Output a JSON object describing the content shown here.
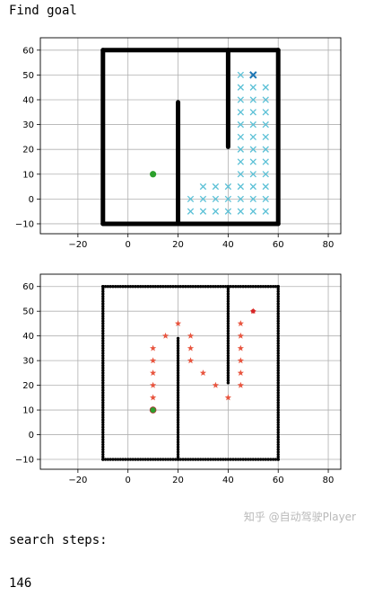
{
  "header": {
    "title": "Find goal"
  },
  "footer": {
    "label": "search steps:",
    "value": "146"
  },
  "watermark": "知乎 @自动驾驶Player",
  "chart_data": [
    {
      "type": "scatter",
      "xlim": [
        -35,
        85
      ],
      "ylim": [
        -14,
        65
      ],
      "xticks": [
        -20,
        0,
        20,
        40,
        60,
        80
      ],
      "yticks": [
        -10,
        0,
        10,
        20,
        30,
        40,
        50,
        60
      ],
      "grid": true,
      "obstacles_color": "#000000",
      "obstacles": [
        {
          "from": [
            -10,
            -10
          ],
          "to": [
            60,
            -10
          ]
        },
        {
          "from": [
            -10,
            60
          ],
          "to": [
            60,
            60
          ]
        },
        {
          "from": [
            -10,
            -10
          ],
          "to": [
            -10,
            60
          ]
        },
        {
          "from": [
            60,
            -10
          ],
          "to": [
            60,
            60
          ]
        },
        {
          "from": [
            20,
            -10
          ],
          "to": [
            20,
            39
          ]
        },
        {
          "from": [
            40,
            21
          ],
          "to": [
            40,
            60
          ]
        }
      ],
      "start": {
        "x": 10,
        "y": 10,
        "color": "#2ca02c"
      },
      "goal": {
        "x": 50,
        "y": 50,
        "color": "#1f77b4"
      },
      "explored_color": "#5bc0d6",
      "explored": [
        [
          45,
          50
        ],
        [
          50,
          50
        ],
        [
          45,
          45
        ],
        [
          50,
          45
        ],
        [
          55,
          45
        ],
        [
          45,
          40
        ],
        [
          50,
          40
        ],
        [
          55,
          40
        ],
        [
          45,
          35
        ],
        [
          50,
          35
        ],
        [
          55,
          35
        ],
        [
          45,
          30
        ],
        [
          50,
          30
        ],
        [
          55,
          30
        ],
        [
          45,
          25
        ],
        [
          50,
          25
        ],
        [
          55,
          25
        ],
        [
          45,
          20
        ],
        [
          50,
          20
        ],
        [
          55,
          20
        ],
        [
          45,
          15
        ],
        [
          50,
          15
        ],
        [
          55,
          15
        ],
        [
          45,
          10
        ],
        [
          50,
          10
        ],
        [
          55,
          10
        ],
        [
          30,
          5
        ],
        [
          35,
          5
        ],
        [
          40,
          5
        ],
        [
          45,
          5
        ],
        [
          50,
          5
        ],
        [
          55,
          5
        ],
        [
          25,
          0
        ],
        [
          30,
          0
        ],
        [
          35,
          0
        ],
        [
          40,
          0
        ],
        [
          45,
          0
        ],
        [
          50,
          0
        ],
        [
          55,
          0
        ],
        [
          25,
          -5
        ],
        [
          30,
          -5
        ],
        [
          35,
          -5
        ],
        [
          40,
          -5
        ],
        [
          45,
          -5
        ],
        [
          50,
          -5
        ],
        [
          55,
          -5
        ]
      ]
    },
    {
      "type": "scatter",
      "xlim": [
        -35,
        85
      ],
      "ylim": [
        -14,
        65
      ],
      "xticks": [
        -20,
        0,
        20,
        40,
        60,
        80
      ],
      "yticks": [
        -10,
        0,
        10,
        20,
        30,
        40,
        50,
        60
      ],
      "grid": true,
      "obstacles_color": "#000000",
      "obstacles": [
        {
          "from": [
            -10,
            -10
          ],
          "to": [
            60,
            -10
          ]
        },
        {
          "from": [
            -10,
            60
          ],
          "to": [
            60,
            60
          ]
        },
        {
          "from": [
            -10,
            -10
          ],
          "to": [
            -10,
            60
          ]
        },
        {
          "from": [
            60,
            -10
          ],
          "to": [
            60,
            60
          ]
        },
        {
          "from": [
            20,
            -10
          ],
          "to": [
            20,
            39
          ]
        },
        {
          "from": [
            40,
            21
          ],
          "to": [
            40,
            60
          ]
        }
      ],
      "start": {
        "x": 10,
        "y": 10,
        "color": "#2ca02c"
      },
      "goal": {
        "x": 50,
        "y": 50,
        "color": "#d62728"
      },
      "path_color": "#e8553f",
      "path": [
        [
          10,
          10
        ],
        [
          10,
          15
        ],
        [
          10,
          20
        ],
        [
          10,
          25
        ],
        [
          10,
          30
        ],
        [
          10,
          35
        ],
        [
          15,
          40
        ],
        [
          20,
          45
        ],
        [
          25,
          40
        ],
        [
          25,
          35
        ],
        [
          25,
          30
        ],
        [
          30,
          25
        ],
        [
          35,
          20
        ],
        [
          40,
          15
        ],
        [
          45,
          20
        ],
        [
          45,
          25
        ],
        [
          45,
          30
        ],
        [
          45,
          35
        ],
        [
          45,
          40
        ],
        [
          45,
          45
        ],
        [
          50,
          50
        ]
      ]
    }
  ]
}
